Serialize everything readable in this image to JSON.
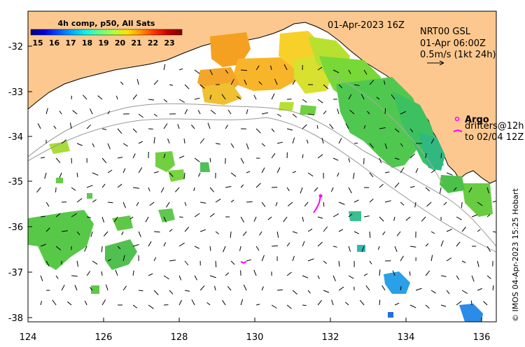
{
  "map": {
    "product_title": "4h comp, p50, All Sats",
    "colorbar_ticks": [
      "15",
      "16",
      "17",
      "18",
      "19",
      "20",
      "21",
      "22",
      "23"
    ],
    "colorbar_colors": [
      "#00007f",
      "#0000e0",
      "#0050ff",
      "#00a8ff",
      "#10f0e8",
      "#60ff90",
      "#b0ff40",
      "#ffe000",
      "#ff9000",
      "#ff3000",
      "#c00000",
      "#7f0000"
    ],
    "datetime": "01-Apr-2023 16Z",
    "currents_product": "NRT00 GSL",
    "currents_time": "01-Apr 06:00Z",
    "scale_label": "0.5m/s (1kt 24h)",
    "argo_label": "Argo",
    "drifters_label": "drifters@12h",
    "drifters_range": "to 02/04 12Z",
    "credit": "© IMOS 04-Apr-2023 15:25 Hobart",
    "x_ticks": [
      "124",
      "126",
      "128",
      "130",
      "132",
      "134",
      "136"
    ],
    "y_ticks": [
      "-32",
      "-33",
      "-34",
      "-35",
      "-36",
      "-37",
      "-38"
    ],
    "land_color": "#fcc88f",
    "drifter_color": "#ff00ff"
  }
}
